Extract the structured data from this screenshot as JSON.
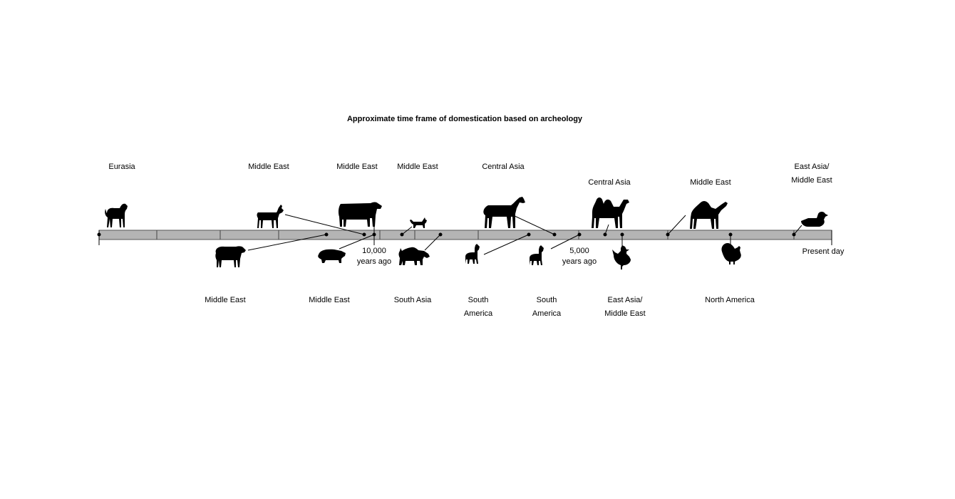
{
  "title": "Approximate time frame of domestication based on archeology",
  "axis": {
    "marker_10000": "10,000\nyears ago",
    "marker_5000": "5,000\nyears ago",
    "end_label": "Present day",
    "bar_color": "#b4b4b4"
  },
  "animals_above": [
    {
      "animal": "dog-icon",
      "region": "Eurasia"
    },
    {
      "animal": "goat-icon",
      "region": "Middle East"
    },
    {
      "animal": "cattle-icon",
      "region": "Middle East"
    },
    {
      "animal": "cat-icon",
      "region": "Middle East"
    },
    {
      "animal": "horse-icon",
      "region": "Central Asia"
    },
    {
      "animal": "bactrian-camel-icon",
      "region": "Central Asia"
    },
    {
      "animal": "dromedary-icon",
      "region": "Middle East"
    },
    {
      "animal": "duck-icon",
      "region": "East Asia/\nMiddle East"
    }
  ],
  "animals_below": [
    {
      "animal": "sheep-icon",
      "region": "Middle East"
    },
    {
      "animal": "pig-icon",
      "region": "Middle East"
    },
    {
      "animal": "zebu-icon",
      "region": "South Asia"
    },
    {
      "animal": "llama-icon",
      "region": "South\nAmerica"
    },
    {
      "animal": "alpaca-icon",
      "region": "South\nAmerica"
    },
    {
      "animal": "chicken-icon",
      "region": "East Asia/\nMiddle East"
    },
    {
      "animal": "turkey-icon",
      "region": "North America"
    }
  ]
}
